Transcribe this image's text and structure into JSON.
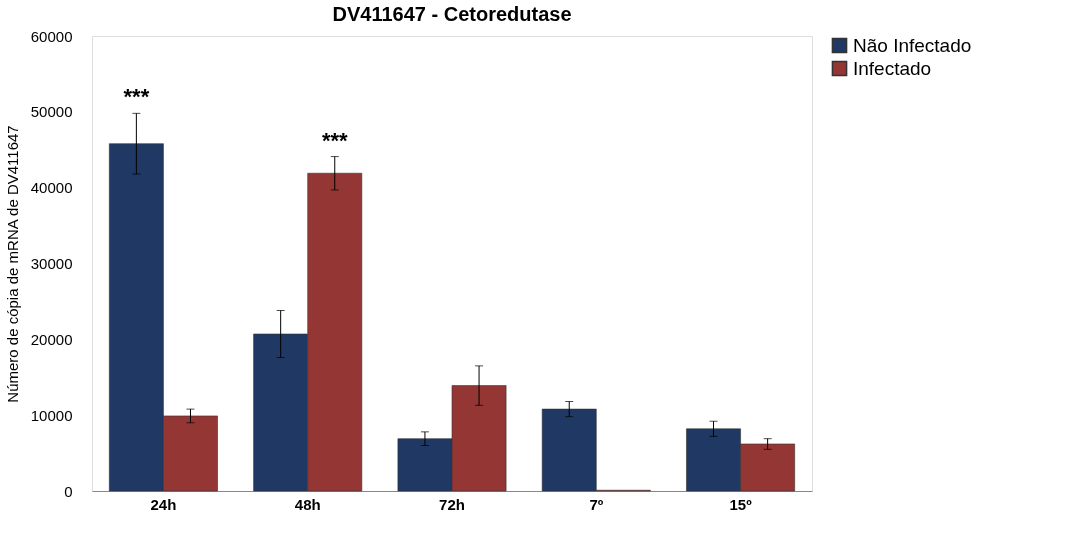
{
  "chart_data": {
    "type": "bar",
    "title": "DV411647 - Cetoredutase",
    "ylabel": "Número de cópia de mRNA de DV411647",
    "categories": [
      "24h",
      "48h",
      "72h",
      "7º",
      "15º"
    ],
    "series": [
      {
        "name": "Não Infectado",
        "color": "#1f3864",
        "values": [
          45800,
          20700,
          6900,
          10800,
          8200
        ],
        "errors": [
          4000,
          3100,
          900,
          1000,
          1000
        ]
      },
      {
        "name": "Infectado",
        "color": "#943634",
        "values": [
          9900,
          41900,
          13900,
          100,
          6200
        ],
        "errors": [
          900,
          2200,
          2600,
          null,
          700
        ]
      }
    ],
    "ylim": [
      0,
      60000
    ],
    "yticks": [
      0,
      10000,
      20000,
      30000,
      40000,
      50000,
      60000
    ],
    "annotations": [
      "***",
      "***"
    ],
    "grid": false,
    "legend": "right"
  }
}
